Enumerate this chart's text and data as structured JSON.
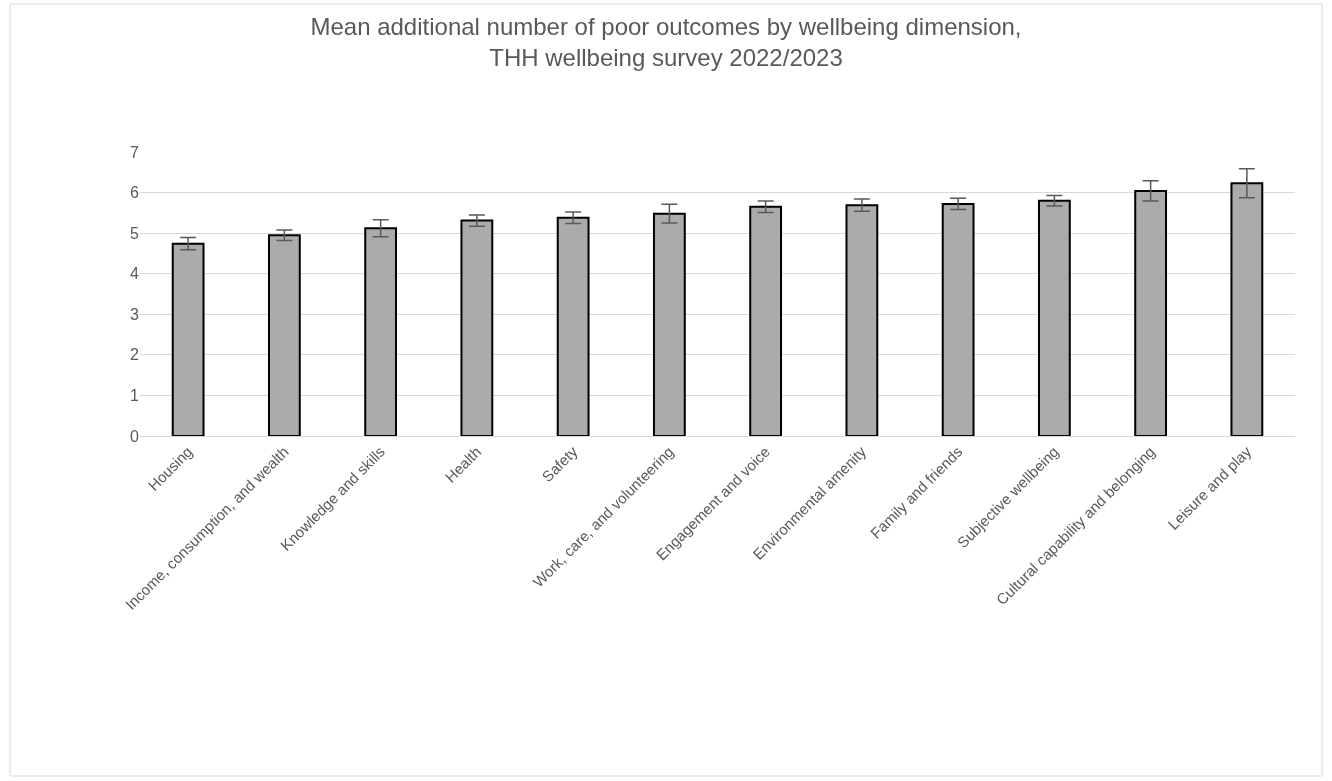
{
  "chart_data": {
    "type": "bar",
    "title": "Mean additional number of poor outcomes by wellbeing dimension,\nTHH wellbeing survey 2022/2023",
    "categories": [
      "Housing",
      "Income, consumption, and wealth",
      "Knowledge and skills",
      "Health",
      "Safety",
      "Work, care, and volunteering",
      "Engagement and voice",
      "Environmental amenity",
      "Family and friends",
      "Subjective wellbeing",
      "Cultural capability and belonging",
      "Leisure and play"
    ],
    "values": [
      4.74,
      4.95,
      5.12,
      5.31,
      5.38,
      5.48,
      5.65,
      5.69,
      5.72,
      5.8,
      6.04,
      6.23
    ],
    "errors": [
      0.15,
      0.13,
      0.21,
      0.14,
      0.14,
      0.23,
      0.14,
      0.15,
      0.14,
      0.13,
      0.25,
      0.36
    ],
    "color": "#ababab",
    "ylim": [
      0,
      7
    ],
    "yticks": [
      0,
      1,
      2,
      3,
      4,
      5,
      6,
      7
    ],
    "grid": "y"
  }
}
